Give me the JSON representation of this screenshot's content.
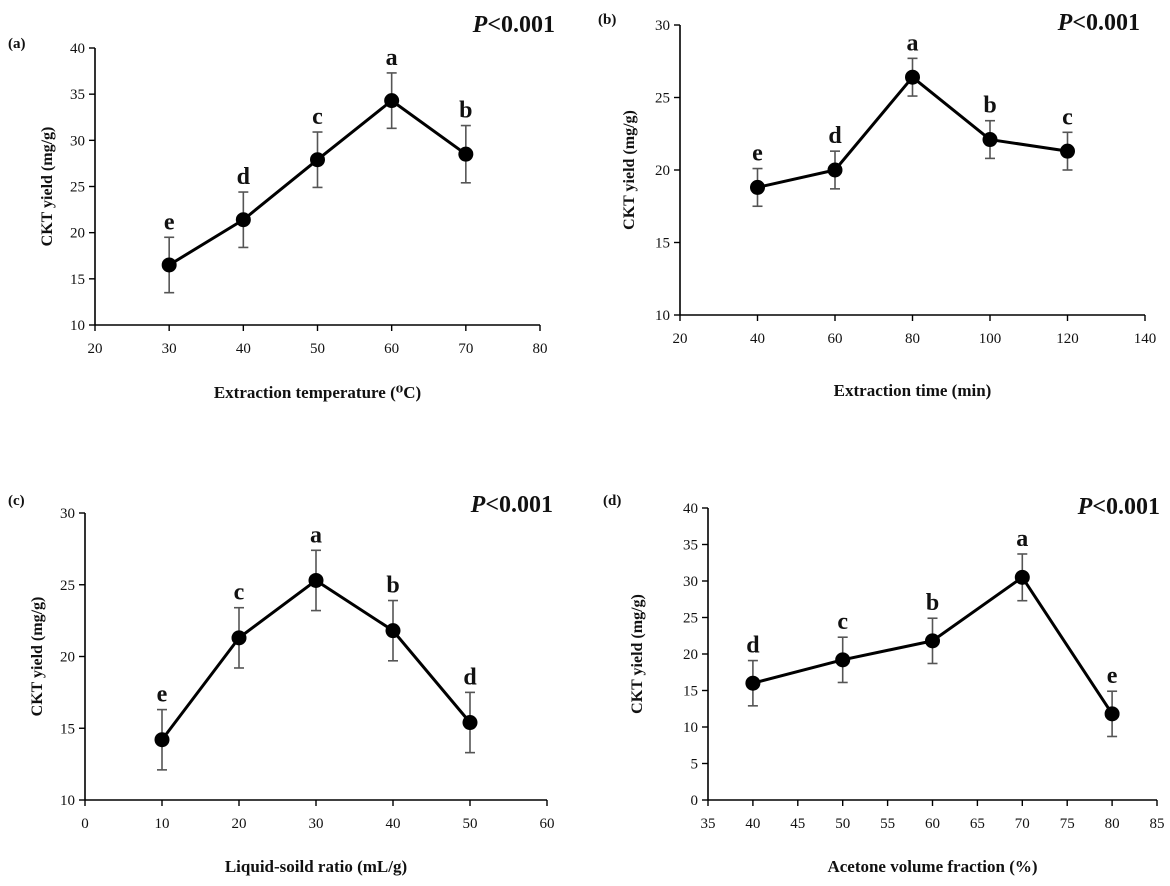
{
  "chart_data": [
    {
      "type": "line",
      "panel_label": "(a)",
      "significance": "P<0.001",
      "significance_italic": "P",
      "significance_rest": "<0.001",
      "xlabel": "Extraction temperature  (⁰C)",
      "ylabel": "CKT yield  (mg/g)",
      "xlim": [
        20,
        80
      ],
      "ylim": [
        10,
        40
      ],
      "xticks": [
        20,
        30,
        40,
        50,
        60,
        70,
        80
      ],
      "yticks": [
        10,
        15,
        20,
        25,
        30,
        35,
        40
      ],
      "x": [
        30,
        40,
        50,
        60,
        70
      ],
      "y": [
        16.5,
        21.4,
        27.9,
        34.3,
        28.5
      ],
      "error": [
        3.0,
        3.0,
        3.0,
        3.0,
        3.1
      ],
      "letters": [
        "e",
        "d",
        "c",
        "a",
        "b"
      ]
    },
    {
      "type": "line",
      "panel_label": "(b)",
      "significance": "P<0.001",
      "significance_italic": "P",
      "significance_rest": "<0.001",
      "xlabel": "Extraction time  (min)",
      "ylabel": "CKT yield  (mg/g)",
      "xlim": [
        20,
        140
      ],
      "ylim": [
        10,
        30
      ],
      "xticks": [
        20,
        40,
        60,
        80,
        100,
        120,
        140
      ],
      "yticks": [
        10,
        15,
        20,
        25,
        30
      ],
      "x": [
        40,
        60,
        80,
        100,
        120
      ],
      "y": [
        18.8,
        20.0,
        26.4,
        22.1,
        21.3
      ],
      "error": [
        1.3,
        1.3,
        1.3,
        1.3,
        1.3
      ],
      "letters": [
        "e",
        "d",
        "a",
        "b",
        "c"
      ]
    },
    {
      "type": "line",
      "panel_label": "(c)",
      "significance": "P<0.001",
      "significance_italic": "P",
      "significance_rest": "<0.001",
      "xlabel": "Liquid-soild ratio  (mL/g)",
      "ylabel": "CKT yield  (mg/g)",
      "xlim": [
        0,
        60
      ],
      "ylim": [
        10,
        30
      ],
      "xticks": [
        0,
        10,
        20,
        30,
        40,
        50,
        60
      ],
      "yticks": [
        10,
        15,
        20,
        25,
        30
      ],
      "x": [
        10,
        20,
        30,
        40,
        50
      ],
      "y": [
        14.2,
        21.3,
        25.3,
        21.8,
        15.4
      ],
      "error": [
        2.1,
        2.1,
        2.1,
        2.1,
        2.1
      ],
      "letters": [
        "e",
        "c",
        "a",
        "b",
        "d"
      ]
    },
    {
      "type": "line",
      "panel_label": "(d)",
      "significance": "P<0.001",
      "significance_italic": "P",
      "significance_rest": "<0.001",
      "xlabel": "Acetone volume fraction  (%)",
      "ylabel": "CKT yield  (mg/g)",
      "xlim": [
        35,
        85
      ],
      "ylim": [
        0,
        40
      ],
      "xticks": [
        35,
        40,
        45,
        50,
        55,
        60,
        65,
        70,
        75,
        80,
        85
      ],
      "yticks": [
        0,
        5,
        10,
        15,
        20,
        25,
        30,
        35,
        40
      ],
      "x": [
        40,
        50,
        60,
        70,
        80
      ],
      "y": [
        16.0,
        19.2,
        21.8,
        30.5,
        11.8
      ],
      "error": [
        3.1,
        3.1,
        3.1,
        3.2,
        3.1
      ],
      "letters": [
        "d",
        "c",
        "b",
        "a",
        "e"
      ]
    }
  ]
}
